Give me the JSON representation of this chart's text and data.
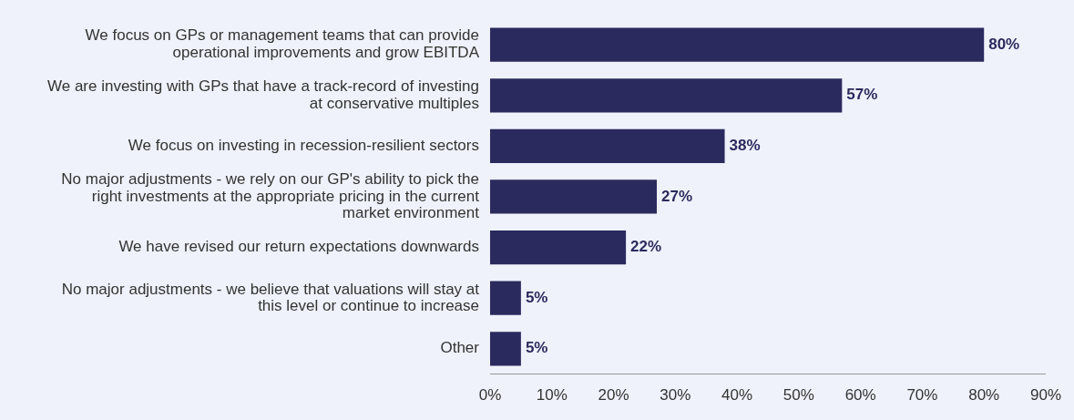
{
  "chart_data": {
    "type": "bar",
    "orientation": "horizontal",
    "categories": [
      "We focus on GPs or management teams that can provide operational improvements and grow EBITDA",
      "We are investing with GPs that have a track-record of investing at conservative multiples",
      "We focus on investing in recession-resilient sectors",
      "No major adjustments - we rely on our GP's ability to pick the right investments at the appropriate pricing in the current market environment",
      "We have revised our return expectations downwards",
      "No major adjustments - we believe that valuations will stay at this level or continue to increase",
      "Other"
    ],
    "values": [
      80,
      57,
      38,
      27,
      22,
      5,
      5
    ],
    "value_labels": [
      "80%",
      "57%",
      "38%",
      "27%",
      "22%",
      "5%",
      "5%"
    ],
    "color": "#2b2a5e",
    "xlim": [
      0,
      90
    ],
    "xticks": [
      {
        "value": 0,
        "label": "0%"
      },
      {
        "value": 10,
        "label": "10%"
      },
      {
        "value": 20,
        "label": "20%"
      },
      {
        "value": 30,
        "label": "30%"
      },
      {
        "value": 40,
        "label": "40%"
      },
      {
        "value": 50,
        "label": "50%"
      },
      {
        "value": 60,
        "label": "60%"
      },
      {
        "value": 70,
        "label": "70%"
      },
      {
        "value": 80,
        "label": "80%"
      },
      {
        "value": 90,
        "label": "90%"
      }
    ],
    "grid": false,
    "legend": false
  }
}
